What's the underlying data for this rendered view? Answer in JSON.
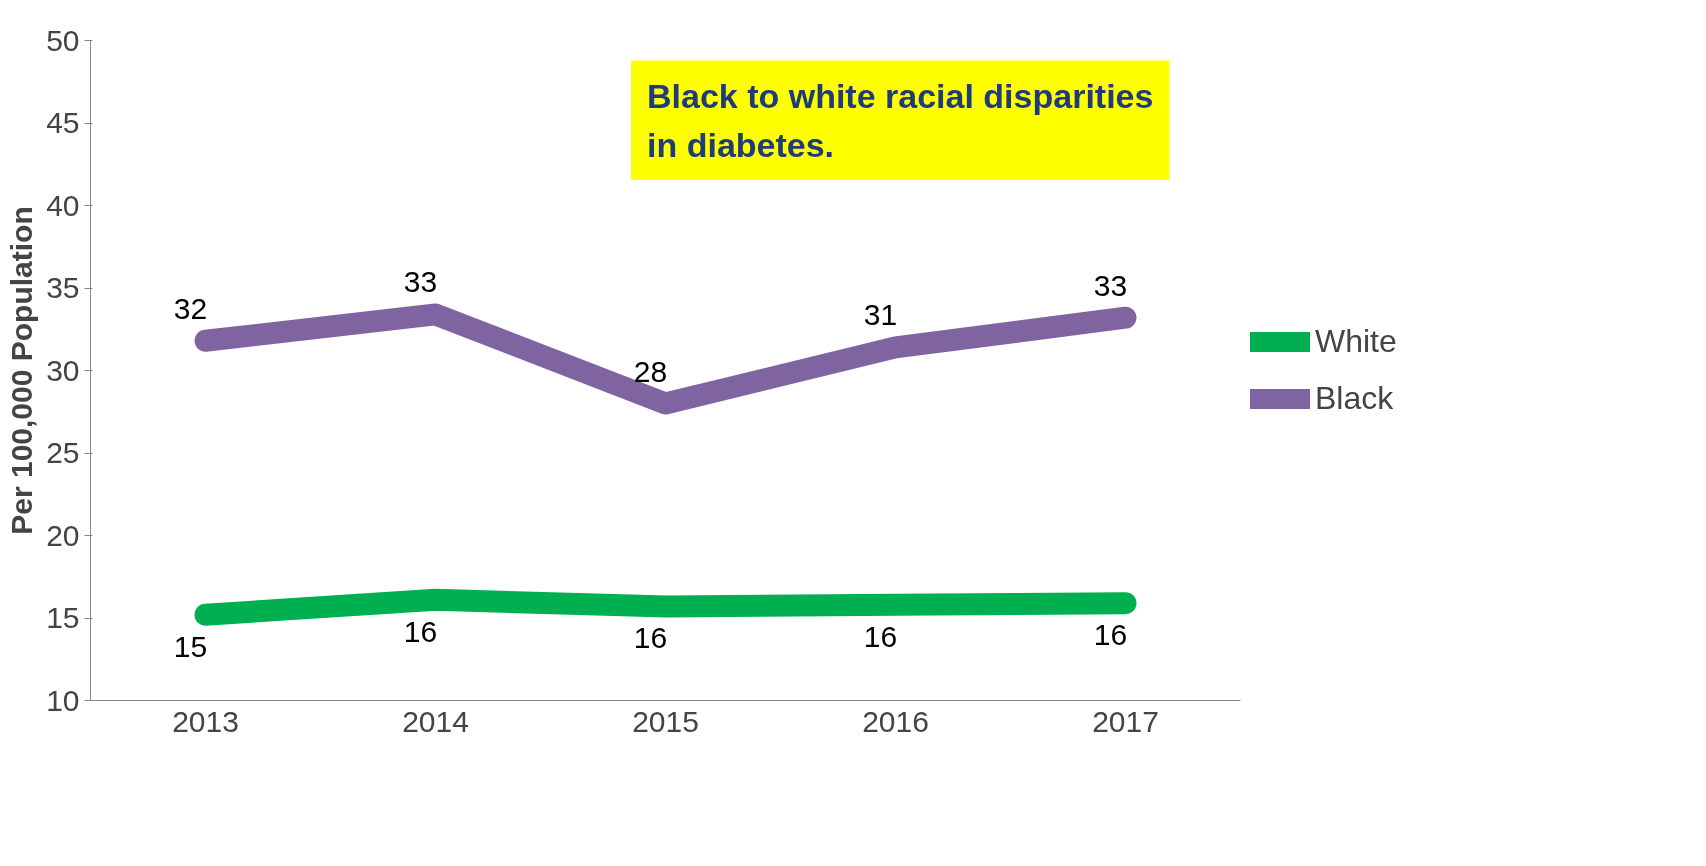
{
  "chart_data": {
    "type": "line",
    "title": "Black to white racial disparities in diabetes.",
    "ylabel": "Per 100,000 Population",
    "categories": [
      "2013",
      "2014",
      "2015",
      "2016",
      "2017"
    ],
    "series": [
      {
        "name": "White",
        "color": "#00b050",
        "values": [
          15.2,
          16.1,
          15.7,
          15.8,
          15.9
        ],
        "value_labels": [
          "15",
          "16",
          "16",
          "16",
          "16"
        ]
      },
      {
        "name": "Black",
        "color": "#8064a2",
        "values": [
          31.8,
          33.4,
          28.0,
          31.4,
          33.2
        ],
        "value_labels": [
          "32",
          "33",
          "28",
          "31",
          "33"
        ]
      }
    ],
    "ylim": [
      10,
      50
    ],
    "yticks": [
      10,
      15,
      20,
      25,
      30,
      35,
      40,
      45,
      50
    ],
    "grid": false,
    "legend": "right",
    "line_style": "solid"
  }
}
